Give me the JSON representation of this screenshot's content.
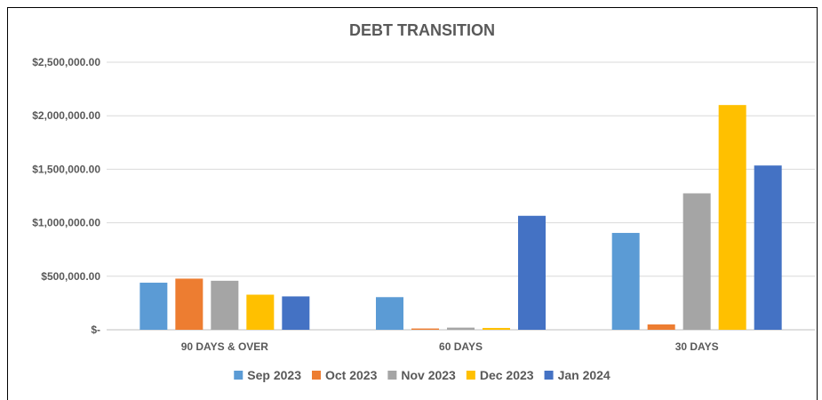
{
  "chart_data": {
    "type": "bar",
    "title": "DEBT TRANSITION",
    "xlabel": "",
    "ylabel": "",
    "categories": [
      "90 DAYS & OVER",
      "60 DAYS",
      "30 DAYS"
    ],
    "ylim": [
      0,
      2500000
    ],
    "yticks": [
      0,
      500000,
      1000000,
      1500000,
      2000000,
      2500000
    ],
    "ytick_labels": [
      "$-",
      "$500,000.00",
      "$1,000,000.00",
      "$1,500,000.00",
      "$2,000,000.00",
      "$2,500,000.00"
    ],
    "grid": true,
    "legend_position": "bottom",
    "series": [
      {
        "name": "Sep 2023",
        "color": "#5B9BD5",
        "values": [
          440000,
          305000,
          905000
        ]
      },
      {
        "name": "Oct 2023",
        "color": "#ED7D31",
        "values": [
          478000,
          12000,
          50000
        ]
      },
      {
        "name": "Nov 2023",
        "color": "#A5A5A5",
        "values": [
          458000,
          20000,
          1275000
        ]
      },
      {
        "name": "Dec 2023",
        "color": "#FFC000",
        "values": [
          328000,
          17000,
          2100000
        ]
      },
      {
        "name": "Jan 2024",
        "color": "#4472C4",
        "values": [
          312000,
          1065000,
          1535000
        ]
      }
    ]
  }
}
